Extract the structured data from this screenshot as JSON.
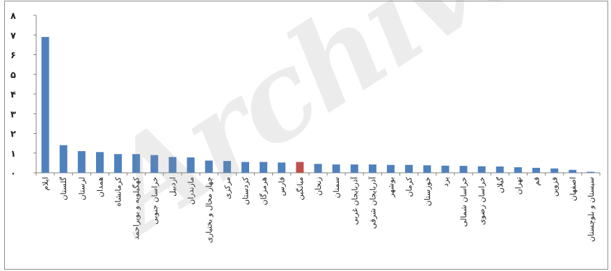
{
  "watermark": "Archive",
  "chart_data": {
    "type": "bar",
    "ylim": [
      0,
      8
    ],
    "yticks": [
      "۰",
      "۱",
      "۲",
      "۳",
      "۴",
      "۵",
      "۶",
      "۷",
      "۸"
    ],
    "ytick_values": [
      0,
      1,
      2,
      3,
      4,
      5,
      6,
      7,
      8
    ],
    "grid": false,
    "legend": "none",
    "bar_color": "#4f81bd",
    "highlight_color": "#c0504d",
    "highlight_category": "میانگین",
    "categories": [
      "ایلام",
      "گلستان",
      "لرستان",
      "همدان",
      "کرمانشاه",
      "کهگیلویه و بویراحمد",
      "خراسان جنوبی",
      "اردبیل",
      "مازندران",
      "چهار محال و بختیاری",
      "مرکزی",
      "کردستان",
      "هرمزگان",
      "فارس",
      "میانگین",
      "زنجان",
      "سمنان",
      "آذربایجان غربی",
      "آذربایجان شرقی",
      "بوشهر",
      "کرمان",
      "خوزستان",
      "یزد",
      "خراسان شمالی",
      "خراسان رضوی",
      "گیلان",
      "تهران",
      "قم",
      "قزوین",
      "اصفهان",
      "سیستان و بلوچستان"
    ],
    "values": [
      6.9,
      1.4,
      1.1,
      1.05,
      0.95,
      0.95,
      0.9,
      0.8,
      0.78,
      0.62,
      0.6,
      0.55,
      0.55,
      0.52,
      0.55,
      0.45,
      0.42,
      0.42,
      0.42,
      0.4,
      0.4,
      0.38,
      0.36,
      0.35,
      0.33,
      0.32,
      0.28,
      0.25,
      0.22,
      0.15,
      0.05
    ]
  }
}
